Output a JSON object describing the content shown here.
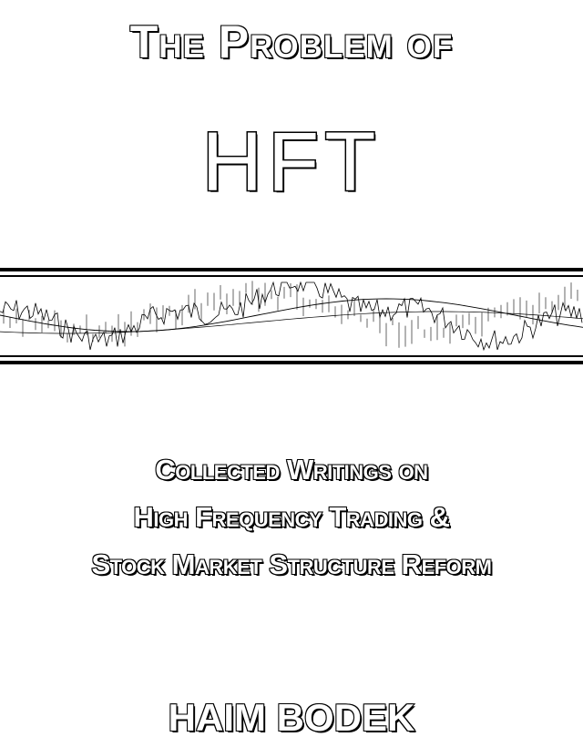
{
  "cover": {
    "title_line": "The Problem of",
    "title_main": "HFT",
    "subtitle_lines": [
      "Collected Writings on",
      "High Frequency Trading &",
      "Stock Market Structure Reform"
    ],
    "author": "HAIM BODEK"
  },
  "colors": {
    "ink": "#000000",
    "paper": "#ffffff"
  },
  "decoration": {
    "band_image": "stock-price-chart-illustration"
  }
}
